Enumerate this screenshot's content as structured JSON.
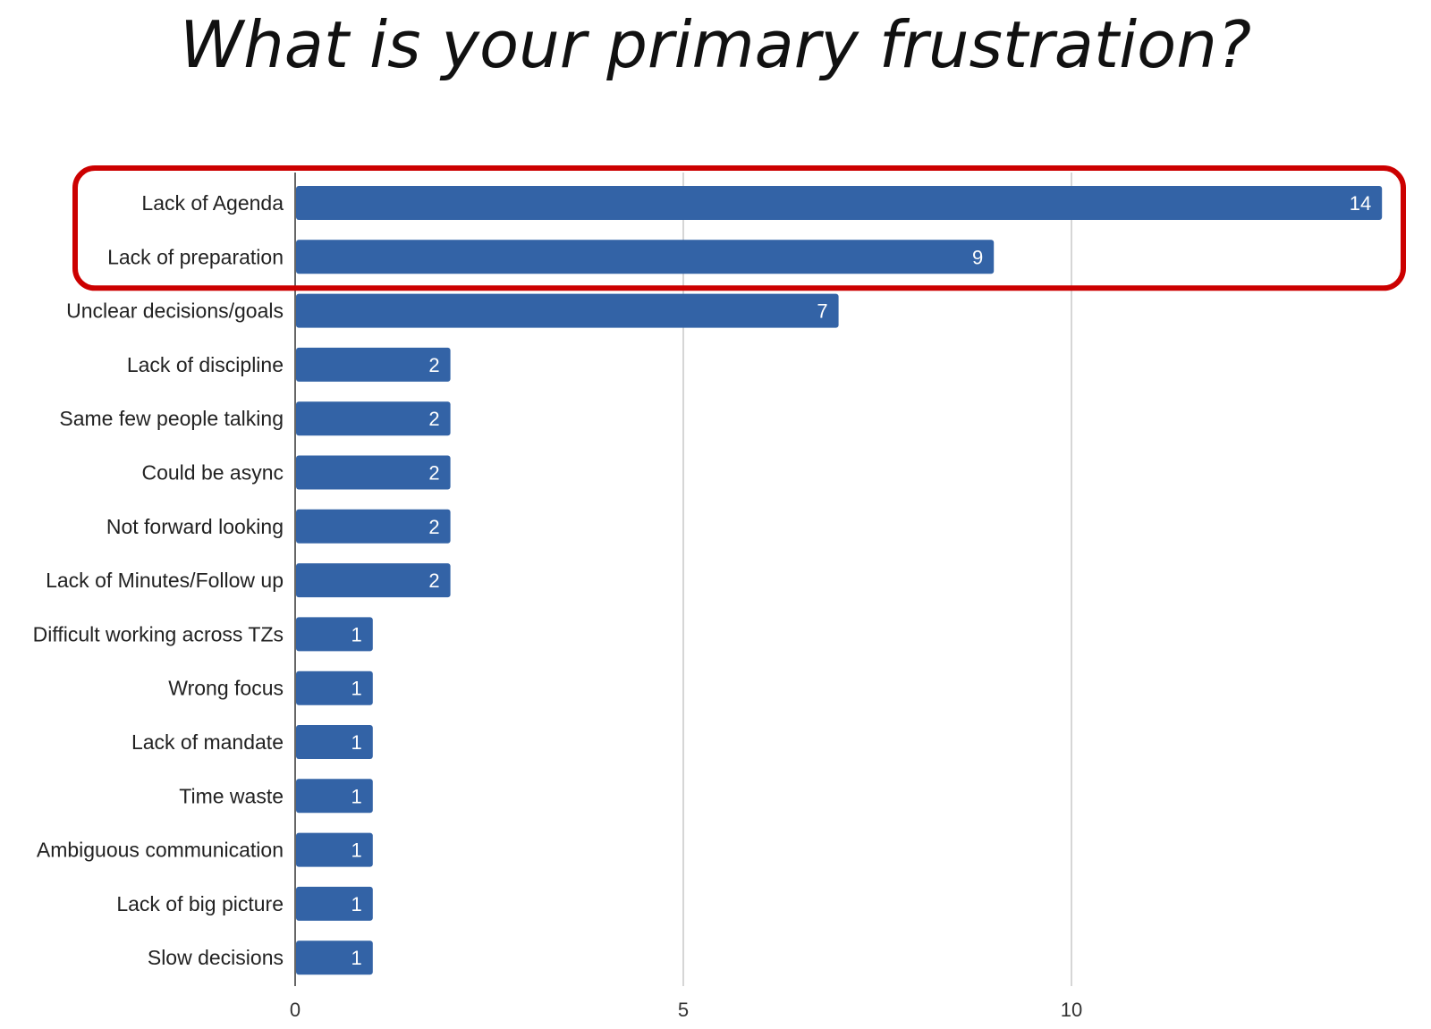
{
  "chart_data": {
    "type": "bar",
    "orientation": "horizontal",
    "title": "What is your primary frustration?",
    "categories": [
      "Lack of Agenda",
      "Lack of preparation",
      "Unclear decisions/goals",
      "Lack of discipline",
      "Same few people talking",
      "Could be async",
      "Not forward looking",
      "Lack of Minutes/Follow up",
      "Difficult working across TZs",
      "Wrong focus",
      "Lack of mandate",
      "Time waste",
      "Ambiguous communication",
      "Lack of big picture",
      "Slow decisions"
    ],
    "values": [
      14,
      9,
      7,
      2,
      2,
      2,
      2,
      2,
      1,
      1,
      1,
      1,
      1,
      1,
      1
    ],
    "xlim": [
      0,
      14.4
    ],
    "xticks": [
      0,
      5,
      10
    ],
    "grid": true,
    "bar_color": "#3363a6",
    "highlight": {
      "categories": [
        "Lack of Agenda",
        "Lack of preparation"
      ],
      "color": "#cc0000"
    }
  }
}
